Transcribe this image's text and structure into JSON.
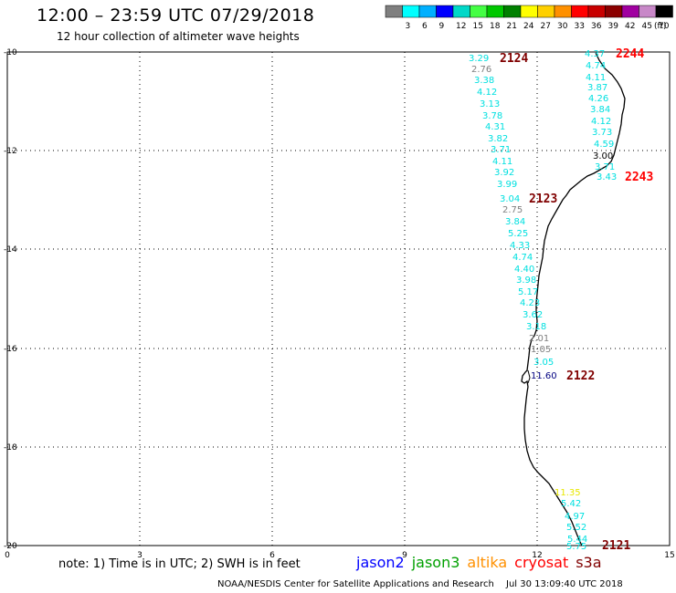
{
  "title": "12:00 – 23:59 UTC 07/29/2018",
  "subtitle": "12 hour collection of altimeter wave heights",
  "legend": {
    "unit": "(ft)",
    "bins": [
      {
        "label": "",
        "color": "#7f7f7f"
      },
      {
        "label": "3",
        "color": "#00ffff"
      },
      {
        "label": "6",
        "color": "#00b0ff"
      },
      {
        "label": "9",
        "color": "#0000ff"
      },
      {
        "label": "12",
        "color": "#00d8c8"
      },
      {
        "label": "15",
        "color": "#44ff44"
      },
      {
        "label": "18",
        "color": "#00c800"
      },
      {
        "label": "21",
        "color": "#008000"
      },
      {
        "label": "24",
        "color": "#ffff00"
      },
      {
        "label": "27",
        "color": "#ffd000"
      },
      {
        "label": "30",
        "color": "#ff9000"
      },
      {
        "label": "33",
        "color": "#ff0000"
      },
      {
        "label": "36",
        "color": "#c80000"
      },
      {
        "label": "39",
        "color": "#8b0000"
      },
      {
        "label": "42",
        "color": "#a000a0"
      },
      {
        "label": "45",
        "color": "#c888c8"
      },
      {
        "label": "70",
        "color": "#000000"
      }
    ]
  },
  "axes": {
    "x_ticks": [
      "0",
      "3",
      "6",
      "9",
      "12",
      "15"
    ],
    "y_ticks": [
      "-10",
      "-12",
      "-14",
      "-16",
      "-18",
      "-20"
    ]
  },
  "passes": [
    {
      "label": "2124",
      "color": "#800000"
    },
    {
      "label": "2244",
      "color": "#ff0000"
    },
    {
      "label": "2243",
      "color": "#ff0000"
    },
    {
      "label": "2123",
      "color": "#800000"
    },
    {
      "label": "2122",
      "color": "#800000"
    },
    {
      "label": "2121",
      "color": "#800000"
    }
  ],
  "readings": [
    {
      "text": "3.29",
      "color": "#00e0e0"
    },
    {
      "text": "2.76",
      "color": "#7f7f7f"
    },
    {
      "text": "3.38",
      "color": "#00e0e0"
    },
    {
      "text": "4.12",
      "color": "#00e0e0"
    },
    {
      "text": "3.13",
      "color": "#00e0e0"
    },
    {
      "text": "3.78",
      "color": "#00e0e0"
    },
    {
      "text": "4.31",
      "color": "#00e0e0"
    },
    {
      "text": "3.82",
      "color": "#00e0e0"
    },
    {
      "text": "3.71",
      "color": "#00e0e0"
    },
    {
      "text": "4.11",
      "color": "#00e0e0"
    },
    {
      "text": "3.92",
      "color": "#00e0e0"
    },
    {
      "text": "3.99",
      "color": "#00e0e0"
    },
    {
      "text": "3.04",
      "color": "#00e0e0"
    },
    {
      "text": "2.75",
      "color": "#7f7f7f"
    },
    {
      "text": "3.84",
      "color": "#00e0e0"
    },
    {
      "text": "5.25",
      "color": "#00e0e0"
    },
    {
      "text": "4.33",
      "color": "#00e0e0"
    },
    {
      "text": "4.74",
      "color": "#00e0e0"
    },
    {
      "text": "4.40",
      "color": "#00e0e0"
    },
    {
      "text": "3.98",
      "color": "#00e0e0"
    },
    {
      "text": "5.17",
      "color": "#00e0e0"
    },
    {
      "text": "4.23",
      "color": "#00e0e0"
    },
    {
      "text": "3.62",
      "color": "#00e0e0"
    },
    {
      "text": "3.18",
      "color": "#00e0e0"
    },
    {
      "text": "2.01",
      "color": "#7f7f7f"
    },
    {
      "text": "1.05",
      "color": "#7f7f7f"
    },
    {
      "text": "3.05",
      "color": "#00e0e0"
    },
    {
      "text": "11.60",
      "color": "#000080"
    },
    {
      "text": "4.37",
      "color": "#00e0e0"
    },
    {
      "text": "4.74",
      "color": "#00e0e0"
    },
    {
      "text": "4.11",
      "color": "#00e0e0"
    },
    {
      "text": "3.87",
      "color": "#00e0e0"
    },
    {
      "text": "4.26",
      "color": "#00e0e0"
    },
    {
      "text": "3.84",
      "color": "#00e0e0"
    },
    {
      "text": "4.12",
      "color": "#00e0e0"
    },
    {
      "text": "3.73",
      "color": "#00e0e0"
    },
    {
      "text": "4.59",
      "color": "#00e0e0"
    },
    {
      "text": "3.00",
      "color": "#000000"
    },
    {
      "text": "3.71",
      "color": "#00e0e0"
    },
    {
      "text": "3.43",
      "color": "#00e0e0"
    },
    {
      "text": "11.35",
      "color": "#e8e800"
    },
    {
      "text": "5.42",
      "color": "#00e0e0"
    },
    {
      "text": "4.97",
      "color": "#00e0e0"
    },
    {
      "text": "5.52",
      "color": "#00e0e0"
    },
    {
      "text": "5.44",
      "color": "#00e0e0"
    },
    {
      "text": "5.75",
      "color": "#00e0e0"
    }
  ],
  "note": "note:  1) Time is in UTC;  2) SWH is in feet",
  "satellites": [
    {
      "name": "jason2",
      "color": "#0000ff"
    },
    {
      "name": "jason3",
      "color": "#00a000"
    },
    {
      "name": "altika",
      "color": "#ff9000"
    },
    {
      "name": "cryosat",
      "color": "#ff0000"
    },
    {
      "name": "s3a",
      "color": "#800000"
    }
  ],
  "credit": "NOAA/NESDIS Center for Satellite Applications and Research",
  "timestamp": "Jul 30 13:09:40 UTC 2018"
}
